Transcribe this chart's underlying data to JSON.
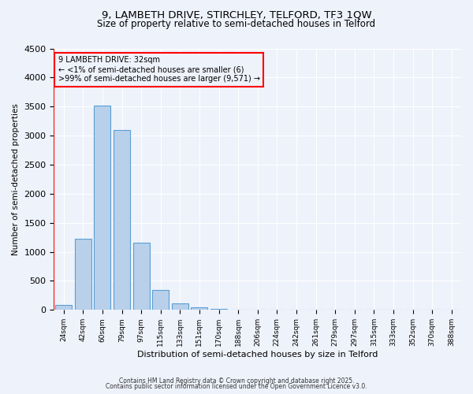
{
  "title1": "9, LAMBETH DRIVE, STIRCHLEY, TELFORD, TF3 1QW",
  "title2": "Size of property relative to semi-detached houses in Telford",
  "xlabel": "Distribution of semi-detached houses by size in Telford",
  "ylabel": "Number of semi-detached properties",
  "bar_labels": [
    "24sqm",
    "42sqm",
    "60sqm",
    "79sqm",
    "97sqm",
    "115sqm",
    "133sqm",
    "151sqm",
    "170sqm",
    "188sqm",
    "206sqm",
    "224sqm",
    "242sqm",
    "261sqm",
    "279sqm",
    "297sqm",
    "315sqm",
    "333sqm",
    "352sqm",
    "370sqm",
    "388sqm"
  ],
  "bar_values": [
    80,
    1220,
    3520,
    3100,
    1160,
    340,
    110,
    45,
    20,
    8,
    3,
    1,
    0,
    0,
    0,
    0,
    0,
    0,
    0,
    0,
    0
  ],
  "bar_color": "#b8d0ea",
  "bar_edge_color": "#5a9fd4",
  "annotation_text": "9 LAMBETH DRIVE: 32sqm\n← <1% of semi-detached houses are smaller (6)\n>99% of semi-detached houses are larger (9,571) →",
  "ylim": [
    0,
    4500
  ],
  "background_color": "#eef2fb",
  "grid_color": "#ffffff",
  "footer1": "Contains HM Land Registry data © Crown copyright and database right 2025.",
  "footer2": "Contains public sector information licensed under the Open Government Licence v3.0."
}
